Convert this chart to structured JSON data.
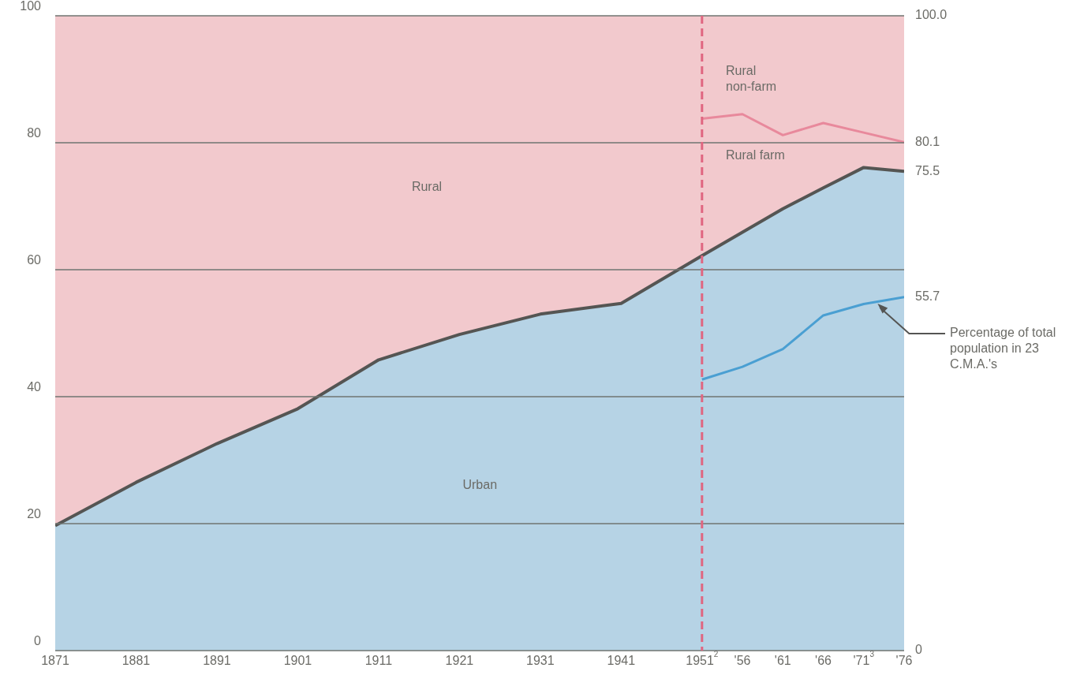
{
  "chart_data": {
    "type": "area",
    "stacked": true,
    "x": [
      1871,
      1881,
      1891,
      1901,
      1911,
      1921,
      1931,
      1941,
      1951,
      1956,
      1961,
      1966,
      1971,
      1976
    ],
    "series": [
      {
        "color": "#b6d3e5",
        "values": [
          19.7,
          26.5,
          32.6,
          38.1,
          45.8,
          49.8,
          53,
          54.7,
          62.2,
          65.9,
          69.6,
          72.9,
          76.1,
          75.5
        ]
      },
      {
        "color": "#f2c9cd",
        "values": [
          80.3,
          73.5,
          67.4,
          61.9,
          54.2,
          50.2,
          47,
          45.3,
          37.8,
          34.1,
          30.4,
          27.1,
          23.9,
          24.5
        ]
      },
      {
        "type": "line",
        "color": "#e8899c",
        "x": [
          1951,
          1956,
          1961,
          1966,
          1971,
          1976
        ],
        "values": [
          83.8,
          84.5,
          81.2,
          83.1,
          81.6,
          80.1
        ]
      },
      {
        "type": "line",
        "name": "Percentage of total population in 23 C.M.A.'s",
        "color": "#4a9fd2",
        "x": [
          1951,
          1956,
          1961,
          1966,
          1971,
          1976
        ],
        "values": [
          42.7,
          44.7,
          47.5,
          52.8,
          54.6,
          55.7
        ]
      }
    ],
    "xlim": [
      1871,
      1976
    ],
    "xticks": [
      1871,
      1881,
      1891,
      1901,
      1911,
      1921,
      1931,
      1941,
      {
        "value": 1951,
        "label": "1951$^{2}$"
      },
      {
        "value": 1956,
        "label": "'56"
      },
      {
        "value": 1961,
        "label": "'61"
      },
      {
        "value": 1966,
        "label": "'66"
      },
      {
        "value": 1971,
        "label": "'71$^{3}$"
      },
      {
        "value": 1976,
        "label": "'76"
      }
    ],
    "ylim": [
      0,
      100
    ],
    "yticks": [
      0,
      20,
      40,
      60,
      80,
      100
    ],
    "y2lim": [
      0,
      100
    ],
    "y2ticks": [
      0,
      55.7,
      75.5,
      80.1,
      {
        "value": 100,
        "label": "100.0"
      }
    ],
    "ref_lines": [
      {
        "axis": "x",
        "value": 1951,
        "color": "#e06680",
        "line_style": "dashed"
      }
    ],
    "annotations": [
      "Rural",
      "Urban",
      "Rural farm",
      "Rural non-farm"
    ],
    "grid": "y",
    "legend": false
  }
}
